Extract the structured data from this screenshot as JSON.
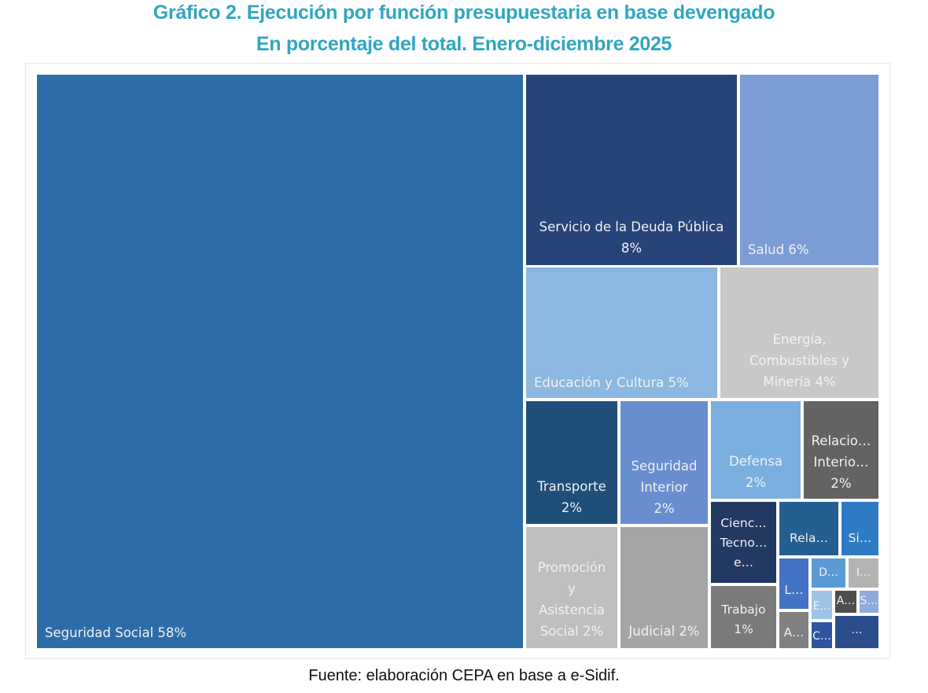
{
  "header": {
    "title": "Gráfico 2. Ejecución por función presupuestaria en base devengado",
    "subtitle": "En porcentaje del total. Enero-diciembre 2025"
  },
  "footer": {
    "source": "Fuente: elaboración CEPA en base a e-Sidif."
  },
  "chart_data": {
    "type": "treemap",
    "title": "Gráfico 2. Ejecución por función presupuestaria en base devengado",
    "subtitle": "En porcentaje del total. Enero-diciembre 2025",
    "unit": "% del total",
    "items": [
      {
        "id": "seguridad-social",
        "label": "Seguridad Social 58%",
        "name": "Seguridad Social",
        "value": 58,
        "color": "#2d6ca8"
      },
      {
        "id": "servicio-deuda",
        "label": "Servicio de la Deuda Pública\n8%",
        "name": "Servicio de la Deuda Pública",
        "value": 8,
        "color": "#264478"
      },
      {
        "id": "salud",
        "label": "Salud 6%",
        "name": "Salud",
        "value": 6,
        "color": "#7b9cd5"
      },
      {
        "id": "educacion",
        "label": "Educación y Cultura 5%",
        "name": "Educación y Cultura",
        "value": 5,
        "color": "#8bb7e1"
      },
      {
        "id": "energia",
        "label": "Energía,\nCombustibles y\nMinería 4%",
        "name": "Energía, Combustibles y Minería",
        "value": 4,
        "color": "#c8c8c8"
      },
      {
        "id": "transporte",
        "label": "Transporte\n2%",
        "name": "Transporte",
        "value": 2,
        "color": "#1f4e79"
      },
      {
        "id": "seguridad-interior",
        "label": "Seguridad\nInterior\n2%",
        "name": "Seguridad Interior",
        "value": 2,
        "color": "#698ed0"
      },
      {
        "id": "defensa",
        "label": "Defensa\n2%",
        "name": "Defensa",
        "value": 2,
        "color": "#7aafdf"
      },
      {
        "id": "relaciones-interiores",
        "label": "Relacio…\nInterio…\n2%",
        "name": "Relaciones Interiores",
        "value": 2,
        "color": "#636363"
      },
      {
        "id": "promocion",
        "label": "Promoción\ny\nAsistencia\nSocial 2%",
        "name": "Promoción y Asistencia Social",
        "value": 2,
        "color": "#bfbfbf"
      },
      {
        "id": "judicial",
        "label": "Judicial 2%",
        "name": "Judicial",
        "value": 2,
        "color": "#a5a5a5"
      },
      {
        "id": "ciencia",
        "label": "Cienc…\nTecno…\ne…",
        "name": "Ciencia, Tecnología e Innovación",
        "value": 1,
        "color": "#223962"
      },
      {
        "id": "trabajo",
        "label": "Trabajo\n1%",
        "name": "Trabajo",
        "value": 1,
        "color": "#7a7a7a"
      },
      {
        "id": "relaciones-exteriores",
        "label": "Rela…",
        "name": "Relaciones Exteriores",
        "value": 1,
        "color": "#255e91"
      },
      {
        "id": "si",
        "label": "Si…",
        "name": "Si…",
        "value": 0.6,
        "color": "#2e7bc4"
      },
      {
        "id": "l",
        "label": "L…",
        "name": "L…",
        "value": 0.5,
        "color": "#4472c4"
      },
      {
        "id": "a-grey",
        "label": "A…",
        "name": "A…",
        "value": 0.4,
        "color": "#808080"
      },
      {
        "id": "d",
        "label": "D…",
        "name": "D…",
        "value": 0.3,
        "color": "#5b9bd5"
      },
      {
        "id": "i",
        "label": "I…",
        "name": "I…",
        "value": 0.3,
        "color": "#b3b3b3"
      },
      {
        "id": "e",
        "label": "E…",
        "name": "E…",
        "value": 0.2,
        "color": "#9dc3e6"
      },
      {
        "id": "a-dark",
        "label": "A…",
        "name": "A…",
        "value": 0.15,
        "color": "#4d4d4d"
      },
      {
        "id": "s",
        "label": "S…",
        "name": "S…",
        "value": 0.15,
        "color": "#8faadc"
      },
      {
        "id": "c",
        "label": "C…",
        "name": "C…",
        "value": 0.15,
        "color": "#2f55a0"
      },
      {
        "id": "other",
        "label": "…",
        "name": "…",
        "value": 0.3,
        "color": "#2c4d8c"
      }
    ]
  }
}
